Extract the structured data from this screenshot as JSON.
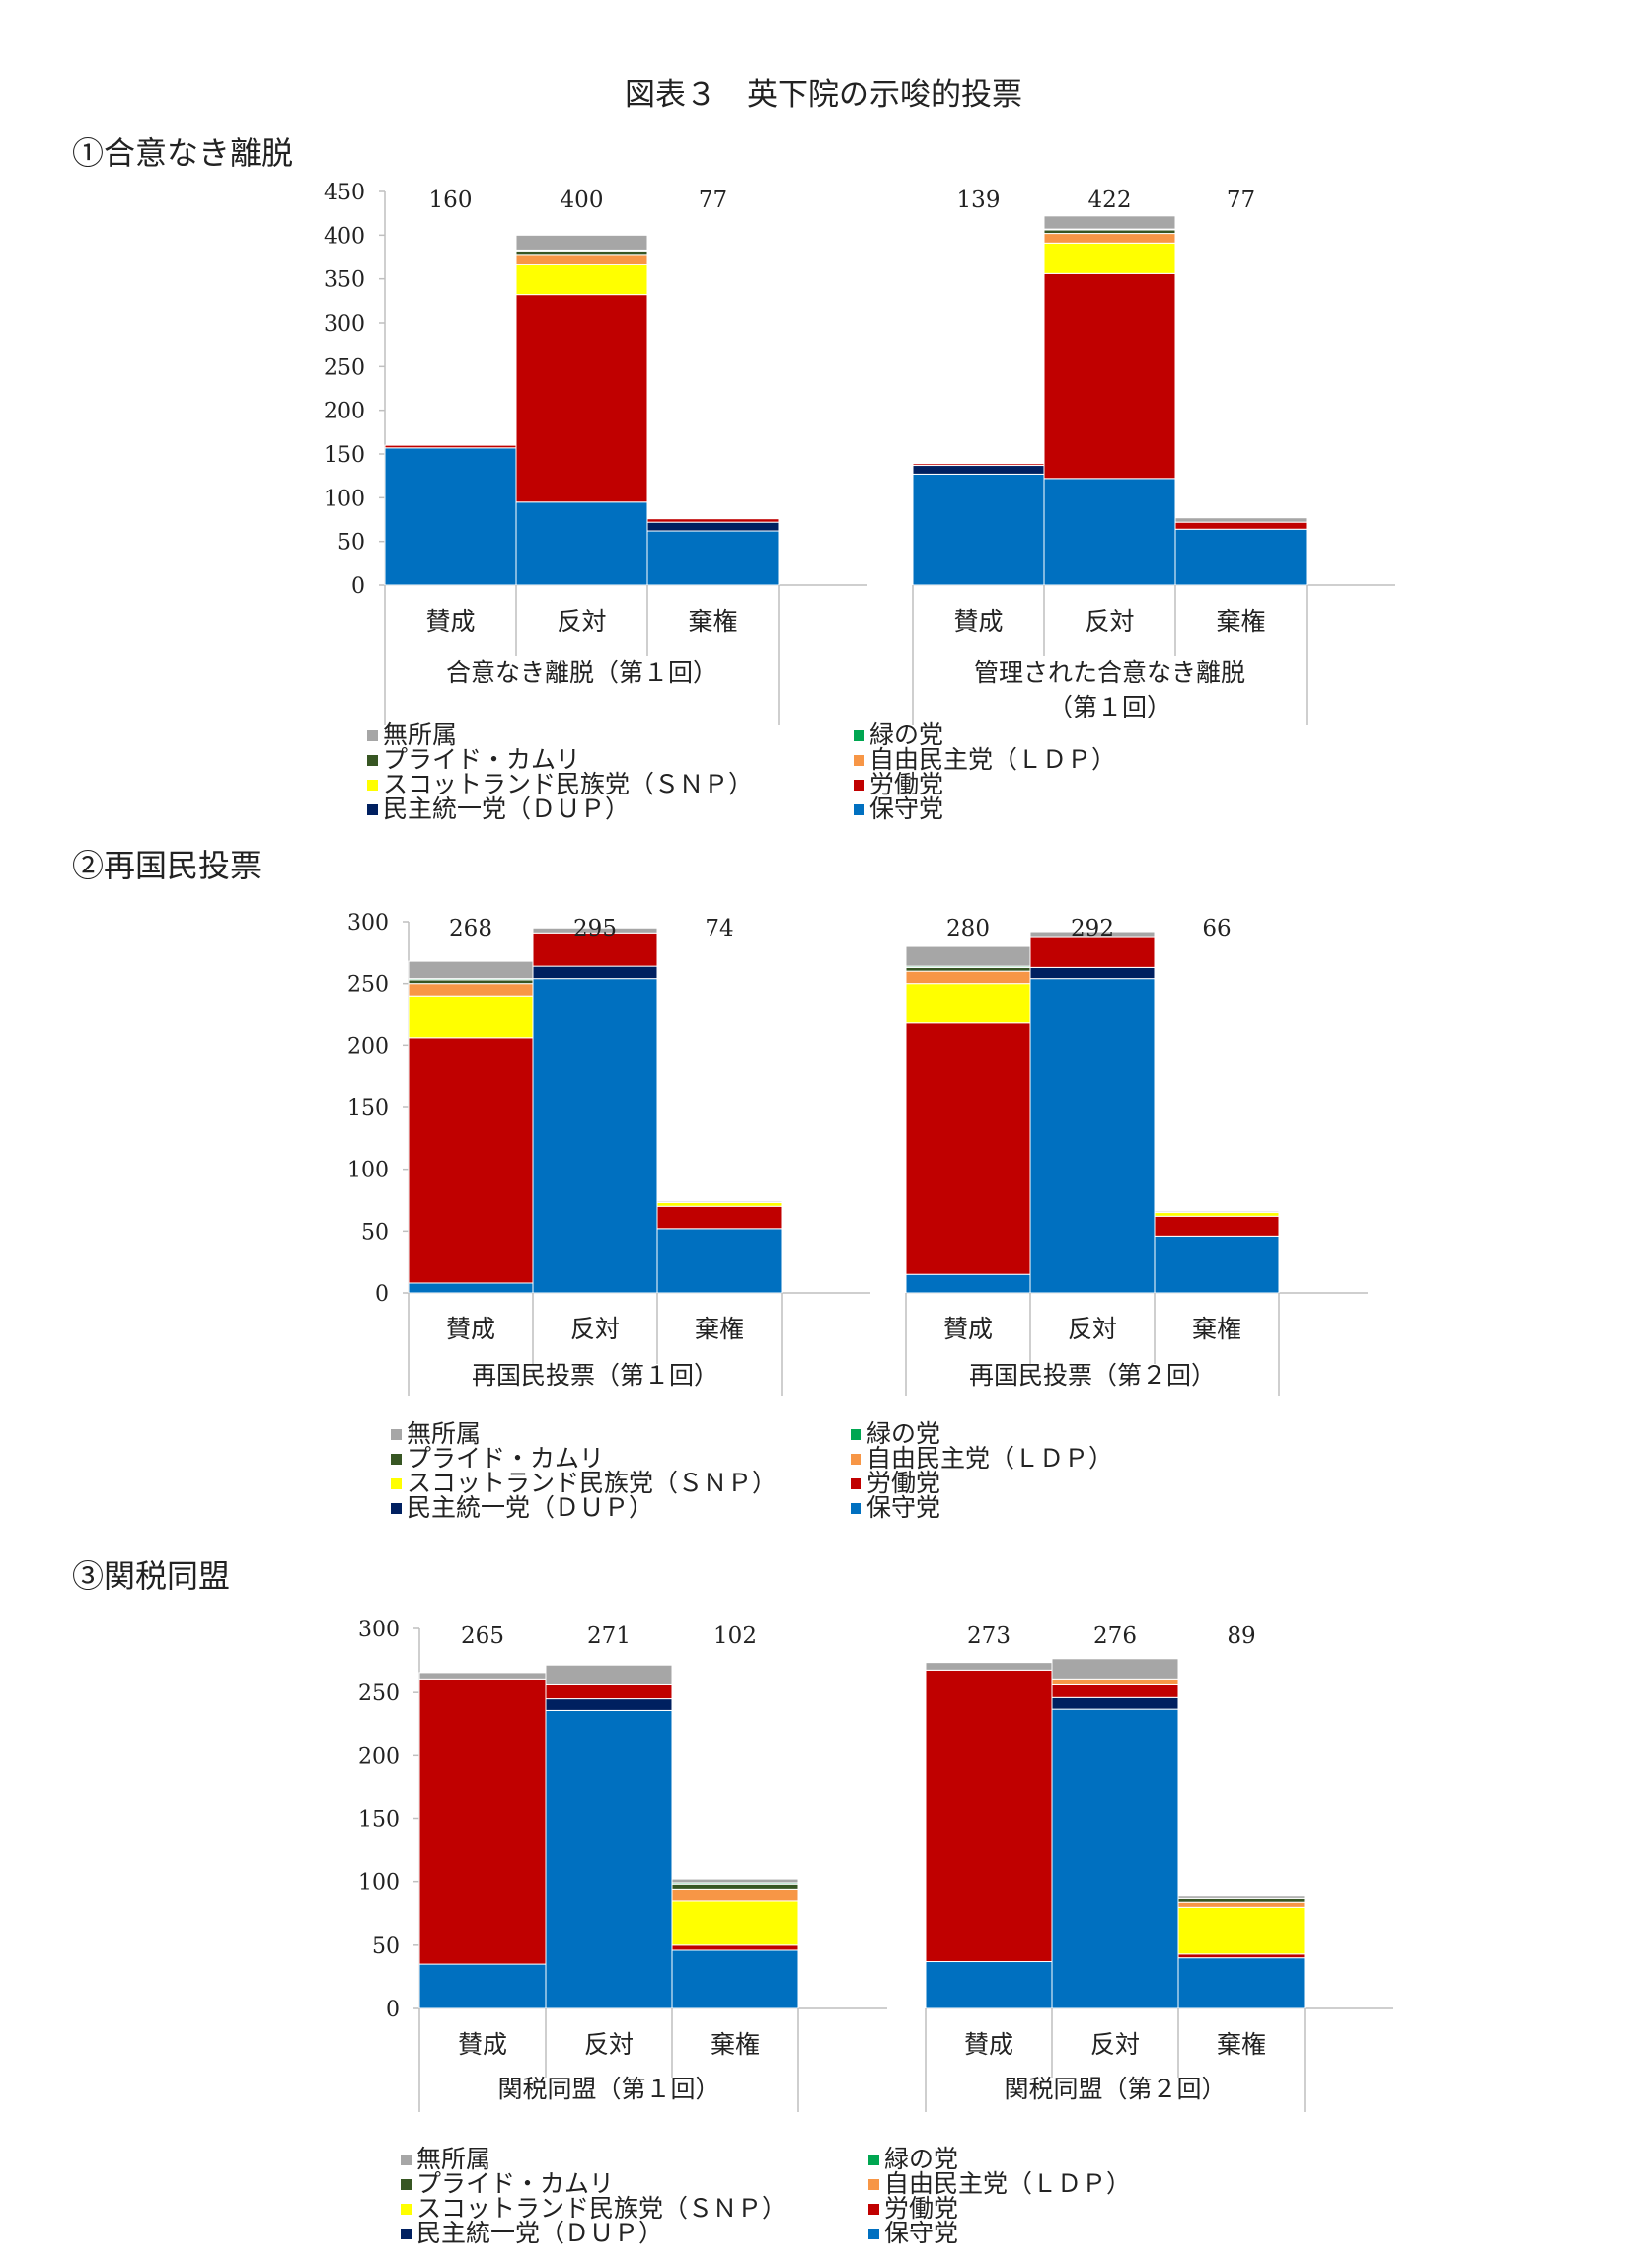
{
  "title": "図表３　英下院の示唆的投票",
  "sections": [
    {
      "title": "①合意なき離脱"
    },
    {
      "title": "②再国民投票"
    },
    {
      "title": "③関税同盟"
    }
  ],
  "legend": [
    {
      "name": "無所属",
      "color": "#a6a6a6"
    },
    {
      "name": "緑の党",
      "color": "#00a651"
    },
    {
      "name": "プライド・カムリ",
      "color": "#375623"
    },
    {
      "name": "自由民主党（ＬＤＰ）",
      "color": "#f79646"
    },
    {
      "name": "スコットランド民族党（ＳＮＰ）",
      "color": "#ffff00"
    },
    {
      "name": "労働党",
      "color": "#c00000"
    },
    {
      "name": "民主統一党（ＤＵＰ）",
      "color": "#002060"
    },
    {
      "name": "保守党",
      "color": "#0070c0"
    }
  ],
  "chart_data": [
    {
      "type": "bar",
      "stacked": true,
      "ylim": [
        0,
        450
      ],
      "yticks": [
        0,
        50,
        100,
        150,
        200,
        250,
        300,
        350,
        400,
        450
      ],
      "categories": [
        "賛成",
        "反対",
        "棄権"
      ],
      "groups": [
        {
          "label": "合意なき離脱（第１回）",
          "totals": [
            "160",
            "400",
            "77"
          ],
          "stacks": [
            {
              "保守党": 157,
              "民主統一党（ＤＵＰ）": 0,
              "労働党": 3,
              "スコットランド民族党（ＳＮＰ）": 0,
              "自由民主党（ＬＤＰ）": 0,
              "プライド・カムリ": 0,
              "緑の党": 0,
              "無所属": 0
            },
            {
              "保守党": 95,
              "民主統一党（ＤＵＰ）": 0,
              "労働党": 237,
              "スコットランド民族党（ＳＮＰ）": 35,
              "自由民主党（ＬＤＰ）": 11,
              "プライド・カムリ": 4,
              "緑の党": 1,
              "無所属": 17
            },
            {
              "保守党": 62,
              "民主統一党（ＤＵＰ）": 10,
              "労働党": 4,
              "スコットランド民族党（ＳＮＰ）": 0,
              "自由民主党（ＬＤＰ）": 0,
              "プライド・カムリ": 0,
              "緑の党": 0,
              "無所属": 1
            }
          ]
        },
        {
          "label": "管理された合意なき離脱\n（第１回）",
          "totals": [
            "139",
            "422",
            "77"
          ],
          "stacks": [
            {
              "保守党": 127,
              "民主統一党（ＤＵＰ）": 10,
              "労働党": 2,
              "スコットランド民族党（ＳＮＰ）": 0,
              "自由民主党（ＬＤＰ）": 0,
              "プライド・カムリ": 0,
              "緑の党": 0,
              "無所属": 0
            },
            {
              "保守党": 122,
              "民主統一党（ＤＵＰ）": 0,
              "労働党": 234,
              "スコットランド民族党（ＳＮＰ）": 35,
              "自由民主党（ＬＤＰ）": 11,
              "プライド・カムリ": 4,
              "緑の党": 1,
              "無所属": 15
            },
            {
              "保守党": 64,
              "民主統一党（ＤＵＰ）": 0,
              "労働党": 8,
              "スコットランド民族党（ＳＮＰ）": 0,
              "自由民主党（ＬＤＰ）": 0,
              "プライド・カムリ": 0,
              "緑の党": 0,
              "無所属": 5
            }
          ]
        }
      ]
    },
    {
      "type": "bar",
      "stacked": true,
      "ylim": [
        0,
        300
      ],
      "yticks": [
        0,
        50,
        100,
        150,
        200,
        250,
        300
      ],
      "categories": [
        "賛成",
        "反対",
        "棄権"
      ],
      "groups": [
        {
          "label": "再国民投票（第１回）",
          "totals": [
            "268",
            "295",
            "74"
          ],
          "stacks": [
            {
              "保守党": 8,
              "民主統一党（ＤＵＰ）": 0,
              "労働党": 198,
              "スコットランド民族党（ＳＮＰ）": 34,
              "自由民主党（ＬＤＰ）": 10,
              "プライド・カムリ": 3,
              "緑の党": 1,
              "無所属": 14
            },
            {
              "保守党": 254,
              "民主統一党（ＤＵＰ）": 10,
              "労働党": 27,
              "スコットランド民族党（ＳＮＰ）": 0,
              "自由民主党（ＬＤＰ）": 0,
              "プライド・カムリ": 0,
              "緑の党": 0,
              "無所属": 4
            },
            {
              "保守党": 52,
              "民主統一党（ＤＵＰ）": 0,
              "労働党": 18,
              "スコットランド民族党（ＳＮＰ）": 3,
              "自由民主党（ＬＤＰ）": 0,
              "プライド・カムリ": 0,
              "緑の党": 0,
              "無所属": 1
            }
          ]
        },
        {
          "label": "再国民投票（第２回）",
          "totals": [
            "280",
            "292",
            "66"
          ],
          "stacks": [
            {
              "保守党": 15,
              "民主統一党（ＤＵＰ）": 0,
              "労働党": 203,
              "スコットランド民族党（ＳＮＰ）": 32,
              "自由民主党（ＬＤＰ）": 10,
              "プライド・カムリ": 3,
              "緑の党": 1,
              "無所属": 16
            },
            {
              "保守党": 254,
              "民主統一党（ＤＵＰ）": 9,
              "労働党": 25,
              "スコットランド民族党（ＳＮＰ）": 0,
              "自由民主党（ＬＤＰ）": 0,
              "プライド・カムリ": 0,
              "緑の党": 0,
              "無所属": 4
            },
            {
              "保守党": 46,
              "民主統一党（ＤＵＰ）": 0,
              "労働党": 16,
              "スコットランド民族党（ＳＮＰ）": 3,
              "自由民主党（ＬＤＰ）": 0,
              "プライド・カムリ": 0,
              "緑の党": 0,
              "無所属": 1
            }
          ]
        }
      ]
    },
    {
      "type": "bar",
      "stacked": true,
      "ylim": [
        0,
        300
      ],
      "yticks": [
        0,
        50,
        100,
        150,
        200,
        250,
        300
      ],
      "categories": [
        "賛成",
        "反対",
        "棄権"
      ],
      "groups": [
        {
          "label": "関税同盟（第１回）",
          "totals": [
            "265",
            "271",
            "102"
          ],
          "stacks": [
            {
              "保守党": 35,
              "民主統一党（ＤＵＰ）": 0,
              "労働党": 225,
              "スコットランド民族党（ＳＮＰ）": 0,
              "自由民主党（ＬＤＰ）": 0,
              "プライド・カムリ": 0,
              "緑の党": 0,
              "無所属": 5
            },
            {
              "保守党": 235,
              "民主統一党（ＤＵＰ）": 10,
              "労働党": 11,
              "スコットランド民族党（ＳＮＰ）": 0,
              "自由民主党（ＬＤＰ）": 0,
              "プライド・カムリ": 0,
              "緑の党": 0,
              "無所属": 15
            },
            {
              "保守党": 46,
              "民主統一党（ＤＵＰ）": 0,
              "労働党": 4,
              "スコットランド民族党（ＳＮＰ）": 35,
              "自由民主党（ＬＤＰ）": 9,
              "プライド・カムリ": 4,
              "緑の党": 1,
              "無所属": 3
            }
          ]
        },
        {
          "label": "関税同盟（第２回）",
          "totals": [
            "273",
            "276",
            "89"
          ],
          "stacks": [
            {
              "保守党": 37,
              "民主統一党（ＤＵＰ）": 0,
              "労働党": 230,
              "スコットランド民族党（ＳＮＰ）": 0,
              "自由民主党（ＬＤＰ）": 0,
              "プライド・カムリ": 0,
              "緑の党": 0,
              "無所属": 6
            },
            {
              "保守党": 236,
              "民主統一党（ＤＵＰ）": 10,
              "労働党": 10,
              "スコットランド民族党（ＳＮＰ）": 0,
              "自由民主党（ＬＤＰ）": 4,
              "プライド・カムリ": 0,
              "緑の党": 0,
              "無所属": 16
            },
            {
              "保守党": 40,
              "民主統一党（ＤＵＰ）": 0,
              "労働党": 3,
              "スコットランド民族党（ＳＮＰ）": 37,
              "自由民主党（ＬＤＰ）": 4,
              "プライド・カムリ": 3,
              "緑の党": 0,
              "無所属": 2
            }
          ]
        }
      ]
    }
  ]
}
